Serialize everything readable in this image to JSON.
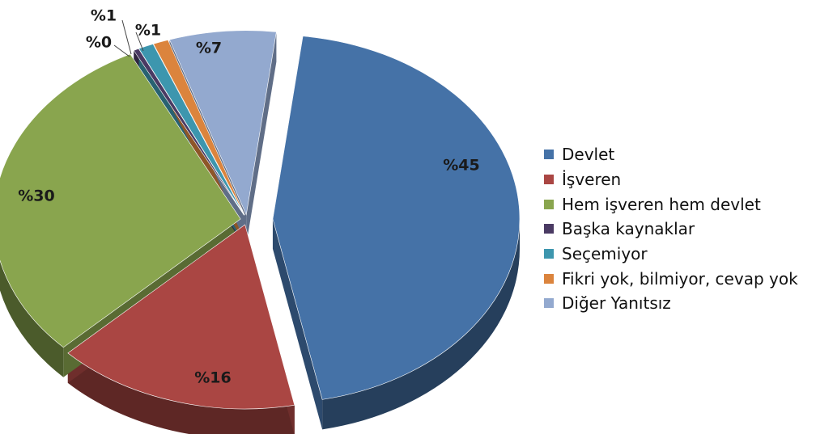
{
  "chart_data": {
    "type": "pie",
    "categories": [
      "Devlet",
      "İşveren",
      "Hem işveren hem devlet",
      "Başka kaynaklar",
      "Seçemiyor",
      "Fikri yok, bilmiyor, cevap yok",
      "Diğer Yanıtsız"
    ],
    "values": [
      45,
      16,
      30,
      0,
      1,
      1,
      7
    ],
    "data_labels": [
      "%45",
      "%16",
      "%30",
      "%0",
      "%1",
      "%1",
      "%7"
    ],
    "colors": [
      "#4572A7",
      "#AA4643",
      "#89A54E",
      "#4A3A63",
      "#3D96AE",
      "#DB843D",
      "#93A9CF"
    ],
    "title": "",
    "legend_position": "right",
    "style": "3d-exploded"
  }
}
